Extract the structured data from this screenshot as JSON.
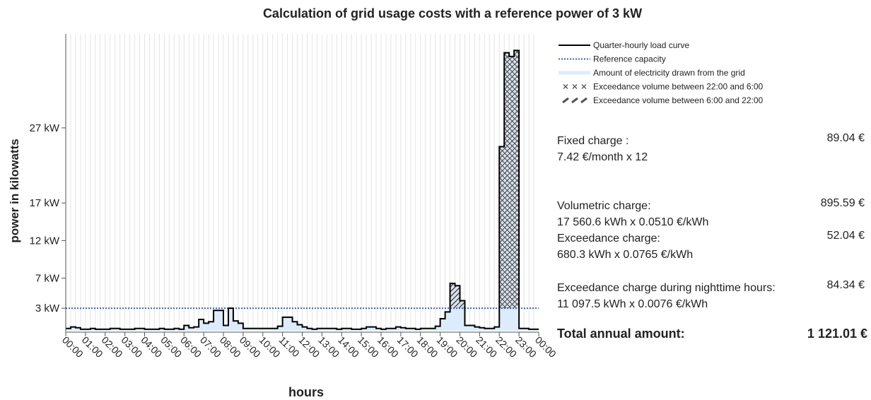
{
  "chart_data": {
    "type": "step",
    "title": "Calculation of grid usage costs with a reference power of 3 kW",
    "xlabel": "hours",
    "ylabel": "power in kilowatts",
    "xlim": [
      0,
      24
    ],
    "ylim": [
      0,
      39.5
    ],
    "xticks": [
      {
        "value": 0,
        "label": "00:00"
      },
      {
        "value": 1,
        "label": "01:00"
      },
      {
        "value": 2,
        "label": "02:00"
      },
      {
        "value": 3,
        "label": "03:00"
      },
      {
        "value": 4,
        "label": "04:00"
      },
      {
        "value": 5,
        "label": "05:00"
      },
      {
        "value": 6,
        "label": "06:00"
      },
      {
        "value": 7,
        "label": "07:00"
      },
      {
        "value": 8,
        "label": "08:00"
      },
      {
        "value": 9,
        "label": "09:00"
      },
      {
        "value": 10,
        "label": "10:00"
      },
      {
        "value": 11,
        "label": "11:00"
      },
      {
        "value": 12,
        "label": "12:00"
      },
      {
        "value": 13,
        "label": "13:00"
      },
      {
        "value": 14,
        "label": "14:00"
      },
      {
        "value": 15,
        "label": "15:00"
      },
      {
        "value": 16,
        "label": "16:00"
      },
      {
        "value": 17,
        "label": "17:00"
      },
      {
        "value": 18,
        "label": "18:00"
      },
      {
        "value": 19,
        "label": "19:00"
      },
      {
        "value": 20,
        "label": "20:00"
      },
      {
        "value": 21,
        "label": "21:00"
      },
      {
        "value": 22,
        "label": "22:00"
      },
      {
        "value": 23,
        "label": "23:00"
      },
      {
        "value": 24,
        "label": "00:00"
      }
    ],
    "yticks": [
      {
        "value": 3,
        "label": "3 kW"
      },
      {
        "value": 7,
        "label": "7 kW"
      },
      {
        "value": 12,
        "label": "12 kW"
      },
      {
        "value": 17,
        "label": "17 kW"
      },
      {
        "value": 27,
        "label": "27 kW"
      }
    ],
    "x": [
      0,
      0.25,
      0.5,
      0.75,
      1,
      1.25,
      1.5,
      1.75,
      2,
      2.25,
      2.5,
      2.75,
      3,
      3.25,
      3.5,
      3.75,
      4,
      4.25,
      4.5,
      4.75,
      5,
      5.25,
      5.5,
      5.75,
      6,
      6.25,
      6.5,
      6.75,
      7,
      7.25,
      7.5,
      7.75,
      8,
      8.25,
      8.5,
      8.75,
      9,
      9.25,
      9.5,
      9.75,
      10,
      10.25,
      10.5,
      10.75,
      11,
      11.25,
      11.5,
      11.75,
      12,
      12.25,
      12.5,
      12.75,
      13,
      13.25,
      13.5,
      13.75,
      14,
      14.25,
      14.5,
      14.75,
      15,
      15.25,
      15.5,
      15.75,
      16,
      16.25,
      16.5,
      16.75,
      17,
      17.25,
      17.5,
      17.75,
      18,
      18.25,
      18.5,
      18.75,
      19,
      19.25,
      19.5,
      19.75,
      20,
      20.25,
      20.5,
      20.75,
      21,
      21.25,
      21.5,
      21.75,
      22,
      22.25,
      22.5,
      22.75,
      23,
      23.25,
      23.5,
      23.75
    ],
    "series": [
      {
        "name": "Quarter-hourly load curve",
        "color": "#000000",
        "values": [
          0.3,
          0.5,
          0.4,
          0.2,
          0.2,
          0.3,
          0.2,
          0.2,
          0.2,
          0.3,
          0.3,
          0.2,
          0.2,
          0.2,
          0.3,
          0.3,
          0.2,
          0.2,
          0.2,
          0.3,
          0.2,
          0.2,
          0.3,
          0.2,
          0.7,
          0.4,
          0.5,
          1.5,
          1.0,
          1.2,
          2.7,
          2.7,
          0.7,
          3.0,
          1.3,
          1.0,
          0.3,
          0.3,
          0.3,
          0.3,
          0.3,
          0.3,
          0.3,
          0.6,
          1.8,
          1.8,
          1.2,
          0.8,
          0.5,
          0.3,
          0.2,
          0.3,
          0.3,
          0.3,
          0.3,
          0.2,
          0.3,
          0.3,
          0.2,
          0.2,
          0.3,
          0.5,
          0.5,
          0.3,
          0.2,
          0.3,
          0.3,
          0.5,
          0.4,
          0.3,
          0.3,
          0.2,
          0.3,
          0.3,
          0.3,
          0.6,
          1.6,
          2.5,
          6.3,
          6.0,
          4.0,
          0.7,
          0.7,
          0.5,
          0.4,
          0.3,
          0.3,
          0.5,
          24.5,
          37.0,
          36.5,
          37.3,
          0.3,
          0.3,
          0.2,
          0.2
        ]
      }
    ],
    "reference": {
      "name": "Reference capacity",
      "value": 3,
      "color": "#3a5fcd"
    },
    "area": {
      "name": "Amount of electricity drawn from the grid",
      "color": "#dcecfc"
    },
    "exceedance": [
      {
        "name": "Exceedance volume between 22:00 and 6:00",
        "from": 22,
        "to": 6,
        "pattern": "cross"
      },
      {
        "name": "Exceedance volume between 6:00 and 22:00",
        "from": 6,
        "to": 22,
        "pattern": "diagonal"
      }
    ],
    "grid": true
  },
  "costs": [
    {
      "label": "Fixed charge :",
      "detail": "7.42 €/month x 12",
      "amount": "89.04 €"
    },
    {
      "label": "Volumetric charge:",
      "detail": "17 560.6 kWh x 0.0510 €/kWh",
      "amount": "895.59 €"
    },
    {
      "label": "Exceedance charge:",
      "detail": "680.3 kWh x 0.0765 €/kWh",
      "amount": "52.04 €"
    },
    {
      "label": "Exceedance charge during nighttime hours:",
      "detail": "11 097.5 kWh x 0.0076 €/kWh",
      "amount": "84.34 €"
    }
  ],
  "total": {
    "label": "Total annual amount:",
    "amount": "1 121.01 €"
  }
}
